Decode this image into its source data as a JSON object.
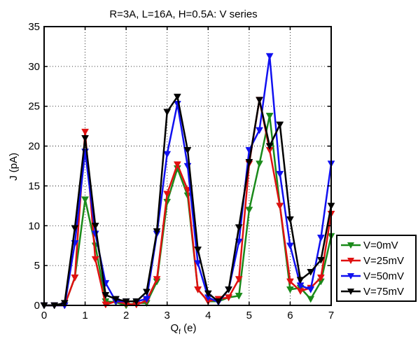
{
  "chart_data": {
    "type": "line",
    "title": "R=3A, L=16A, H=0.5A: V series",
    "xlabel_main": "Q",
    "xlabel_sub": "f",
    "xlabel_unit": " (e)",
    "ylabel": "J (pA)",
    "xlim": [
      0,
      7
    ],
    "ylim": [
      0,
      35
    ],
    "xticks": [
      0,
      1,
      2,
      3,
      4,
      5,
      6,
      7
    ],
    "yticks": [
      0,
      5,
      10,
      15,
      20,
      25,
      30,
      35
    ],
    "grid": true,
    "legend_position": "bottom-right, outside plot",
    "marker": "downward-triangle",
    "series": [
      {
        "name": "V=0mV",
        "color": "#1a8a1a",
        "x": [
          0,
          0.25,
          0.5,
          0.75,
          1.0,
          1.25,
          1.5,
          1.75,
          2.0,
          2.25,
          2.5,
          2.75,
          3.0,
          3.25,
          3.5,
          3.75,
          4.0,
          4.25,
          4.5,
          4.75,
          5.0,
          5.25,
          5.5,
          5.75,
          6.0,
          6.25,
          6.5,
          6.75,
          7.0
        ],
        "y": [
          0,
          0,
          0,
          3.5,
          13.3,
          7.5,
          0.5,
          0.4,
          0,
          0.3,
          0.3,
          3.0,
          13.0,
          17.2,
          13.8,
          2.0,
          0.5,
          0.5,
          1.0,
          1.2,
          12.0,
          17.8,
          23.8,
          12.5,
          2.0,
          2.2,
          0.8,
          3.0,
          8.7
        ]
      },
      {
        "name": "V=25mV",
        "color": "#e01010",
        "x": [
          0,
          0.25,
          0.5,
          0.75,
          1.0,
          1.25,
          1.5,
          1.75,
          2.0,
          2.25,
          2.5,
          2.75,
          3.0,
          3.25,
          3.5,
          3.75,
          4.0,
          4.25,
          4.5,
          4.75,
          5.0,
          5.25,
          5.5,
          5.75,
          6.0,
          6.25,
          6.5,
          6.75,
          7.0
        ],
        "y": [
          0,
          0,
          0,
          3.5,
          21.8,
          5.8,
          0.1,
          0.5,
          0.2,
          0.1,
          0.6,
          3.3,
          14.0,
          17.7,
          14.5,
          2.0,
          0.5,
          0.8,
          1.0,
          3.3,
          17.8,
          25.8,
          19.5,
          12.5,
          3.0,
          1.8,
          2.2,
          3.5,
          11.5
        ]
      },
      {
        "name": "V=50mV",
        "color": "#1010f0",
        "x": [
          0,
          0.25,
          0.5,
          0.75,
          1.0,
          1.25,
          1.5,
          1.75,
          2.0,
          2.25,
          2.5,
          2.75,
          3.0,
          3.25,
          3.5,
          3.75,
          4.0,
          4.25,
          4.5,
          4.75,
          5.0,
          5.25,
          5.5,
          5.75,
          6.0,
          6.25,
          6.5,
          6.75,
          7.0
        ],
        "y": [
          0,
          0,
          0,
          7.8,
          19.3,
          9.0,
          2.8,
          0.5,
          0.5,
          0.5,
          0.8,
          9.0,
          19.0,
          25.3,
          17.5,
          5.3,
          1.0,
          0.4,
          2.0,
          8.0,
          19.5,
          22.0,
          31.3,
          16.5,
          7.5,
          2.5,
          2.0,
          8.5,
          17.8
        ]
      },
      {
        "name": "V=75mV",
        "color": "#000000",
        "x": [
          0,
          0.25,
          0.5,
          0.75,
          1.0,
          1.25,
          1.5,
          1.75,
          2.0,
          2.25,
          2.5,
          2.75,
          3.0,
          3.25,
          3.5,
          3.75,
          4.0,
          4.25,
          4.5,
          4.75,
          5.0,
          5.25,
          5.5,
          5.75,
          6.0,
          6.25,
          6.5,
          6.75,
          7.0
        ],
        "y": [
          0,
          0,
          0.3,
          9.7,
          21.0,
          10.0,
          1.3,
          0.8,
          0.5,
          0.5,
          1.7,
          9.3,
          24.3,
          26.2,
          19.5,
          7.0,
          1.5,
          0.5,
          2.0,
          9.8,
          18.0,
          25.8,
          20.0,
          22.7,
          10.8,
          3.2,
          4.2,
          5.7,
          12.5
        ]
      }
    ]
  }
}
